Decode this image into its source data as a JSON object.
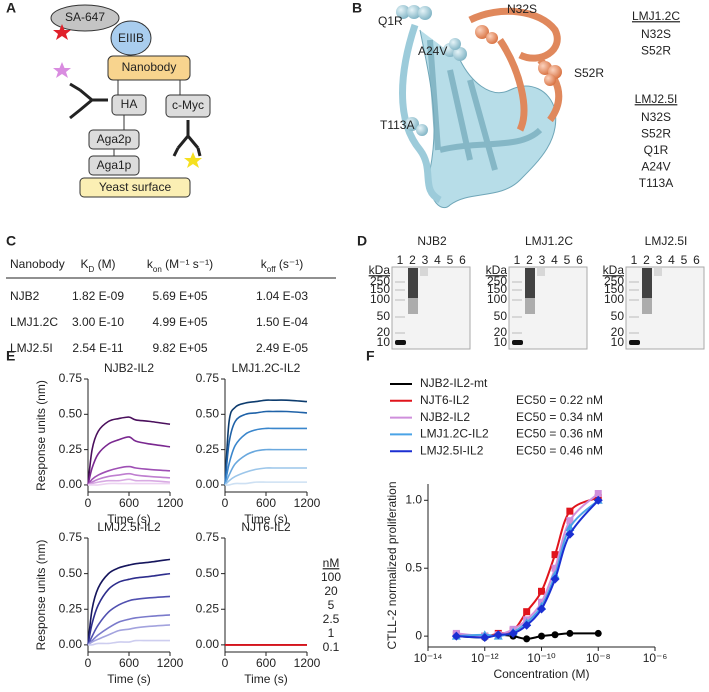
{
  "panel_labels": [
    "A",
    "B",
    "C",
    "D",
    "E",
    "F"
  ],
  "diagram_a": {
    "sa": "SA-647",
    "eiiib": "EIIIB",
    "nanobody": "Nanobody",
    "ha": "HA",
    "cmyc": "c-Myc",
    "aga2p": "Aga2p",
    "aga1p": "Aga1p",
    "yeast": "Yeast surface"
  },
  "structure_b": {
    "sites": [
      {
        "label": "Q1R",
        "color": "#7fb3c4"
      },
      {
        "label": "A24V",
        "color": "#7fb3c4"
      },
      {
        "label": "T113A",
        "color": "#7fb3c4"
      },
      {
        "label": "N32S",
        "color": "#e0885c"
      },
      {
        "label": "S52R",
        "color": "#e0885c"
      }
    ],
    "legend": [
      {
        "title": "LMJ1.2C",
        "items": [
          {
            "label": "N32S",
            "color": "#e0885c"
          },
          {
            "label": "S52R",
            "color": "#e0885c"
          }
        ]
      },
      {
        "title": "LMJ2.5I",
        "items": [
          {
            "label": "N32S",
            "color": "#e0885c"
          },
          {
            "label": "S52R",
            "color": "#e0885c"
          },
          {
            "label": "Q1R",
            "color": "#7fb3c4"
          },
          {
            "label": "A24V",
            "color": "#7fb3c4"
          },
          {
            "label": "T113A",
            "color": "#7fb3c4"
          }
        ]
      }
    ]
  },
  "table_c": {
    "header": [
      "Nanobody",
      {
        "base": "K",
        "sub": "D",
        "rest": " (M)"
      },
      {
        "base": "k",
        "sub": "on",
        "rest": " (M⁻¹ s⁻¹)"
      },
      {
        "base": "k",
        "sub": "off",
        "rest": " (s⁻¹)"
      }
    ],
    "rows": [
      [
        "NJB2",
        "1.82 E-09",
        "5.69 E+05",
        "1.04 E-03"
      ],
      [
        "LMJ1.2C",
        "3.00 E-10",
        "4.99 E+05",
        "1.50 E-04"
      ],
      [
        "LMJ2.5I",
        "2.54 E-11",
        "9.82 E+05",
        "2.49 E-05"
      ]
    ]
  },
  "gels_d": {
    "unit": "kDa",
    "markers": [
      "250",
      "150",
      "100",
      "50",
      "20",
      "10"
    ],
    "gels": [
      {
        "title": "NJB2",
        "lanes": [
          "1",
          "2",
          "3",
          "4",
          "5",
          "6"
        ]
      },
      {
        "title": "LMJ1.2C",
        "lanes": [
          "1",
          "2",
          "3",
          "4",
          "5",
          "6"
        ]
      },
      {
        "title": "LMJ2.5I",
        "lanes": [
          "1",
          "2",
          "3",
          "4",
          "5",
          "6"
        ]
      }
    ]
  },
  "chart_data": [
    {
      "type": "line",
      "title": "NJB2-IL2",
      "ylabel": "Response units (nm)",
      "xlabel": "Time (s)",
      "x": [
        0,
        60,
        150,
        300,
        450,
        600,
        700,
        900,
        1200
      ],
      "xlim": [
        0,
        1200
      ],
      "xticks": [
        0,
        600,
        1200
      ],
      "ylim": [
        -0.05,
        0.75
      ],
      "yticks": [
        {
          "value": 0,
          "label": "0.00"
        },
        {
          "value": 0.25,
          "label": "0.25"
        },
        {
          "value": 0.5,
          "label": "0.50"
        },
        {
          "value": 0.75,
          "label": "0.75"
        }
      ],
      "series": [
        {
          "color": "#4a0f5c",
          "values": [
            0,
            0.25,
            0.38,
            0.45,
            0.47,
            0.48,
            0.46,
            0.45,
            0.43
          ]
        },
        {
          "color": "#7a2890",
          "values": [
            0,
            0.12,
            0.22,
            0.29,
            0.32,
            0.34,
            0.31,
            0.29,
            0.27
          ]
        },
        {
          "color": "#9e4fb4",
          "values": [
            0,
            0.04,
            0.07,
            0.1,
            0.12,
            0.13,
            0.12,
            0.11,
            0.1
          ]
        },
        {
          "color": "#bf7fd0",
          "values": [
            0,
            0.02,
            0.04,
            0.06,
            0.07,
            0.08,
            0.07,
            0.06,
            0.05
          ]
        },
        {
          "color": "#d8aae3",
          "values": [
            0,
            0.01,
            0.02,
            0.03,
            0.03,
            0.04,
            0.03,
            0.03,
            0.02
          ]
        },
        {
          "color": "#ecd2f1",
          "values": [
            0,
            0,
            0,
            0.01,
            0.01,
            0.01,
            0.01,
            0.01,
            0.01
          ]
        }
      ]
    },
    {
      "type": "line",
      "title": "LMJ1.2C-IL2",
      "xlabel": "Time (s)",
      "x": [
        0,
        60,
        150,
        300,
        450,
        600,
        700,
        900,
        1200
      ],
      "xlim": [
        0,
        1200
      ],
      "xticks": [
        0,
        600,
        1200
      ],
      "ylim": [
        -0.05,
        0.75
      ],
      "yticks": [
        {
          "value": 0,
          "label": "0.00"
        },
        {
          "value": 0.25,
          "label": "0.25"
        },
        {
          "value": 0.5,
          "label": "0.50"
        },
        {
          "value": 0.75,
          "label": "0.75"
        }
      ],
      "series": [
        {
          "color": "#0d3c6e",
          "values": [
            0,
            0.45,
            0.55,
            0.58,
            0.59,
            0.6,
            0.6,
            0.6,
            0.59
          ]
        },
        {
          "color": "#1f62a8",
          "values": [
            0,
            0.3,
            0.45,
            0.5,
            0.51,
            0.52,
            0.52,
            0.52,
            0.51
          ]
        },
        {
          "color": "#3a86cc",
          "values": [
            0,
            0.15,
            0.28,
            0.36,
            0.39,
            0.4,
            0.4,
            0.4,
            0.4
          ]
        },
        {
          "color": "#69a8de",
          "values": [
            0,
            0.07,
            0.15,
            0.21,
            0.24,
            0.25,
            0.25,
            0.25,
            0.25
          ]
        },
        {
          "color": "#9cc6ea",
          "values": [
            0,
            0.03,
            0.06,
            0.09,
            0.11,
            0.12,
            0.12,
            0.12,
            0.12
          ]
        },
        {
          "color": "#cde0f3",
          "values": [
            0,
            0,
            0.01,
            0.01,
            0.02,
            0.02,
            0.02,
            0.02,
            0.02
          ]
        }
      ]
    },
    {
      "type": "line",
      "title": "LMJ2.5I-IL2",
      "ylabel": "Response units (nm)",
      "xlabel": "Time (s)",
      "x": [
        0,
        60,
        150,
        300,
        450,
        600,
        700,
        900,
        1200
      ],
      "xlim": [
        0,
        1200
      ],
      "xticks": [
        0,
        600,
        1200
      ],
      "ylim": [
        -0.05,
        0.75
      ],
      "yticks": [
        {
          "value": 0,
          "label": "0.00"
        },
        {
          "value": 0.25,
          "label": "0.25"
        },
        {
          "value": 0.5,
          "label": "0.50"
        },
        {
          "value": 0.75,
          "label": "0.75"
        }
      ],
      "series": [
        {
          "color": "#15155c",
          "values": [
            0,
            0.25,
            0.4,
            0.5,
            0.54,
            0.56,
            0.57,
            0.58,
            0.6
          ]
        },
        {
          "color": "#2d2d8c",
          "values": [
            0,
            0.15,
            0.28,
            0.39,
            0.44,
            0.46,
            0.47,
            0.48,
            0.5
          ]
        },
        {
          "color": "#5050b0",
          "values": [
            0,
            0.06,
            0.14,
            0.23,
            0.28,
            0.31,
            0.32,
            0.33,
            0.34
          ]
        },
        {
          "color": "#7a7acb",
          "values": [
            0,
            0.03,
            0.07,
            0.12,
            0.16,
            0.18,
            0.19,
            0.2,
            0.21
          ]
        },
        {
          "color": "#a3a3de",
          "values": [
            0,
            0.02,
            0.04,
            0.07,
            0.1,
            0.11,
            0.12,
            0.13,
            0.14
          ]
        },
        {
          "color": "#cdcdef",
          "values": [
            0,
            0,
            0.01,
            0.01,
            0.02,
            0.02,
            0.03,
            0.03,
            0.03
          ]
        }
      ]
    },
    {
      "type": "line",
      "title": "NJT6-IL2",
      "xlabel": "Time (s)",
      "legend_title": "nM",
      "x": [
        0,
        60,
        150,
        300,
        450,
        600,
        700,
        900,
        1200
      ],
      "xlim": [
        0,
        1200
      ],
      "xticks": [
        0,
        600,
        1200
      ],
      "ylim": [
        -0.05,
        0.75
      ],
      "yticks": [
        {
          "value": 0,
          "label": "0.00"
        },
        {
          "value": 0.25,
          "label": "0.25"
        },
        {
          "value": 0.5,
          "label": "0.50"
        },
        {
          "value": 0.75,
          "label": "0.75"
        }
      ],
      "series": [
        {
          "name": "100",
          "color": "#d4141c",
          "values": [
            0,
            0,
            0,
            0,
            0,
            0,
            0,
            0,
            0
          ]
        },
        {
          "name": "20",
          "color": "#d4141c",
          "values": [
            0,
            0,
            0,
            0,
            0,
            0,
            0,
            0,
            0
          ]
        },
        {
          "name": "5",
          "color": "#d4141c",
          "values": [
            0,
            0,
            0,
            0,
            0,
            0,
            0,
            0,
            0
          ]
        },
        {
          "name": "2.5",
          "color": "#d4141c",
          "values": [
            0,
            0,
            0,
            0,
            0,
            0,
            0,
            0,
            0
          ]
        },
        {
          "name": "1",
          "color": "#d4141c",
          "values": [
            0,
            0,
            0,
            0,
            0,
            0,
            0,
            0,
            0
          ]
        },
        {
          "name": "0.1",
          "color": "#d4141c",
          "values": [
            0,
            0,
            0,
            0,
            0,
            0,
            0,
            0,
            0
          ]
        }
      ]
    },
    {
      "type": "scatter",
      "log_x": true,
      "ylabel": "CTLL-2 normalized proliferation",
      "xlabel": "Concentration (M)",
      "x": [
        1e-13,
        1e-12,
        3e-12,
        1e-11,
        3e-11,
        1e-10,
        3e-10,
        1e-09,
        1e-08
      ],
      "xlim": [
        1e-14,
        1e-06
      ],
      "xticks": [
        {
          "value": 1e-14,
          "label": "10⁻¹⁴"
        },
        {
          "value": 1e-12,
          "label": "10⁻¹²"
        },
        {
          "value": 1e-10,
          "label": "10⁻¹⁰"
        },
        {
          "value": 1e-08,
          "label": "10⁻⁸"
        },
        {
          "value": 1e-06,
          "label": "10⁻⁶"
        }
      ],
      "ylim": [
        -0.08,
        1.12
      ],
      "yticks": [
        0,
        0.5,
        {
          "value": 1,
          "label": "1.0"
        }
      ],
      "series": [
        {
          "name": "NJB2-IL2-mt",
          "color": "#000000",
          "marker": "circle",
          "values": [
            0,
            -0.01,
            0.01,
            0,
            -0.02,
            0,
            0.01,
            0.02,
            0.02
          ]
        },
        {
          "name": "NJT6-IL2",
          "color": "#e0141c",
          "marker": "square",
          "annotation": "EC50 = 0.22 nM",
          "values": [
            0.01,
            0,
            0.02,
            0.04,
            0.18,
            0.33,
            0.6,
            0.92,
            1.02
          ]
        },
        {
          "name": "NJB2-IL2",
          "color": "#cf8fdc",
          "marker": "square",
          "annotation": "EC50 = 0.34 nM",
          "values": [
            0.02,
            0,
            0.01,
            0.05,
            0.12,
            0.25,
            0.5,
            0.85,
            1.05
          ]
        },
        {
          "name": "LMJ1.2C-IL2",
          "color": "#4aa3e6",
          "marker": "triangle",
          "annotation": "EC50 = 0.36 nM",
          "values": [
            0,
            0.01,
            0,
            0.03,
            0.1,
            0.22,
            0.45,
            0.8,
            1
          ]
        },
        {
          "name": "LMJ2.5I-IL2",
          "color": "#1b2fd2",
          "marker": "diamond",
          "annotation": "EC50 = 0.46 nM",
          "values": [
            0,
            -0.01,
            0.01,
            0.02,
            0.08,
            0.2,
            0.42,
            0.75,
            1
          ]
        }
      ]
    }
  ]
}
